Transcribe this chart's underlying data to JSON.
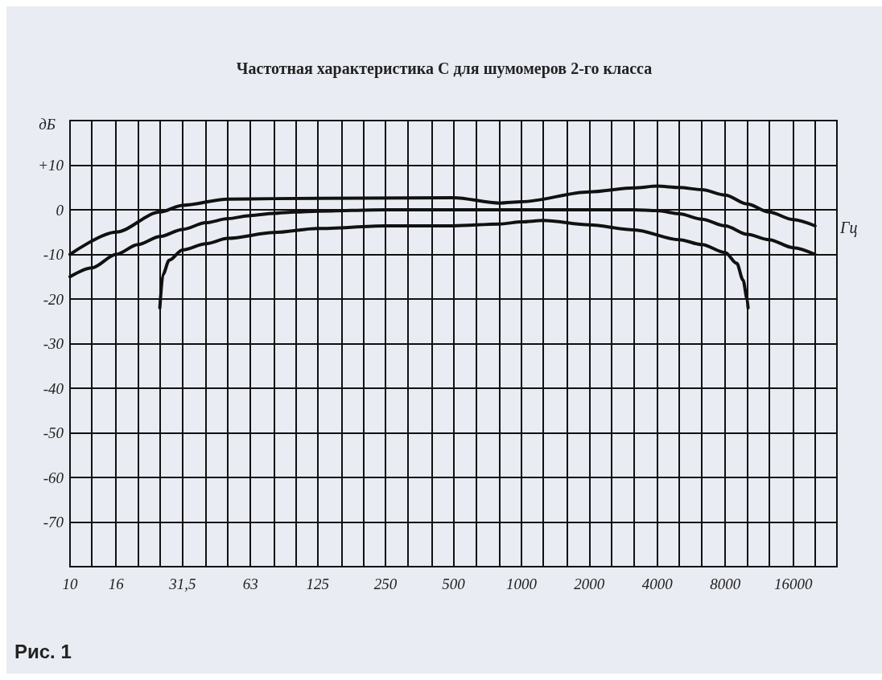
{
  "chart_data": {
    "type": "line",
    "title": "Частотная характеристика С для шумомеров 2-го класса",
    "xlabel": "Гц",
    "ylabel": "дБ",
    "log": "x",
    "grid": true,
    "marker": "none",
    "line_style": "solid",
    "xlim": [
      10,
      25000
    ],
    "ylim": [
      -80,
      20
    ],
    "xticks": [
      {
        "value": 10,
        "label": "10"
      },
      {
        "value": 12.5,
        "label": null
      },
      {
        "value": 16,
        "label": "16"
      },
      {
        "value": 20,
        "label": null
      },
      {
        "value": 25,
        "label": null
      },
      {
        "value": 31.5,
        "label": "31,5"
      },
      {
        "value": 40,
        "label": null
      },
      {
        "value": 50,
        "label": null
      },
      {
        "value": 63,
        "label": "63"
      },
      {
        "value": 80,
        "label": null
      },
      {
        "value": 100,
        "label": null
      },
      {
        "value": 125,
        "label": "125"
      },
      {
        "value": 160,
        "label": null
      },
      {
        "value": 200,
        "label": null
      },
      {
        "value": 250,
        "label": "250"
      },
      {
        "value": 315,
        "label": null
      },
      {
        "value": 400,
        "label": null
      },
      {
        "value": 500,
        "label": "500"
      },
      {
        "value": 630,
        "label": null
      },
      {
        "value": 800,
        "label": null
      },
      {
        "value": 1000,
        "label": "1000"
      },
      {
        "value": 1250,
        "label": null
      },
      {
        "value": 1600,
        "label": null
      },
      {
        "value": 2000,
        "label": "2000"
      },
      {
        "value": 2500,
        "label": null
      },
      {
        "value": 3150,
        "label": null
      },
      {
        "value": 4000,
        "label": "4000"
      },
      {
        "value": 5000,
        "label": null
      },
      {
        "value": 6300,
        "label": null
      },
      {
        "value": 8000,
        "label": "8000"
      },
      {
        "value": 10000,
        "label": null
      },
      {
        "value": 12500,
        "label": null
      },
      {
        "value": 16000,
        "label": "16000"
      },
      {
        "value": 20000,
        "label": null
      },
      {
        "value": 25000,
        "label": null
      }
    ],
    "yticks": [
      {
        "value": 20,
        "label": null
      },
      {
        "value": 10,
        "label": "+10"
      },
      0,
      -10,
      -20,
      -30,
      -40,
      -50,
      -60,
      -70,
      {
        "value": -80,
        "label": null
      }
    ],
    "series": [
      {
        "color": "#111111",
        "x": [
          10,
          16,
          25,
          31.5,
          50,
          80,
          200,
          500,
          800,
          1000,
          2000,
          3150,
          4000,
          5000,
          6300,
          8000,
          10000,
          12500,
          16000,
          20000
        ],
        "values": [
          -10,
          -5,
          -0.5,
          1,
          2.4,
          2.5,
          2.6,
          2.7,
          1.5,
          1.8,
          4,
          4.9,
          5.3,
          5,
          4.5,
          3.3,
          1.3,
          -0.5,
          -2.2,
          -3.6
        ]
      },
      {
        "color": "#111111",
        "x": [
          10,
          12.5,
          16,
          20,
          25,
          31.5,
          40,
          50,
          63,
          80,
          100,
          125,
          250,
          500,
          1000,
          2000,
          3150,
          4000,
          5000,
          6300,
          8000,
          10000,
          12500,
          16000,
          20000
        ],
        "values": [
          -15,
          -13,
          -10,
          -7.8,
          -6,
          -4.4,
          -2.9,
          -2,
          -1.3,
          -0.8,
          -0.5,
          -0.3,
          0,
          0,
          0,
          0,
          0,
          -0.2,
          -0.9,
          -2.1,
          -3.6,
          -5.5,
          -6.7,
          -8.5,
          -10
        ]
      },
      {
        "color": "#111111",
        "x": [
          25,
          25.8,
          27.5,
          31.5,
          40,
          50,
          80,
          125,
          250,
          500,
          800,
          1000,
          1250,
          2000,
          3150,
          5000,
          6300,
          8000,
          9000,
          9600,
          10000,
          10100
        ],
        "values": [
          -22,
          -14.5,
          -11.3,
          -9,
          -7.6,
          -6.4,
          -5.1,
          -4.2,
          -3.6,
          -3.6,
          -3.2,
          -2.7,
          -2.4,
          -3.4,
          -4.5,
          -6.7,
          -7.8,
          -9.6,
          -12,
          -15.8,
          -20,
          -22
        ]
      }
    ],
    "annotations": [
      "Рис. 1"
    ]
  }
}
